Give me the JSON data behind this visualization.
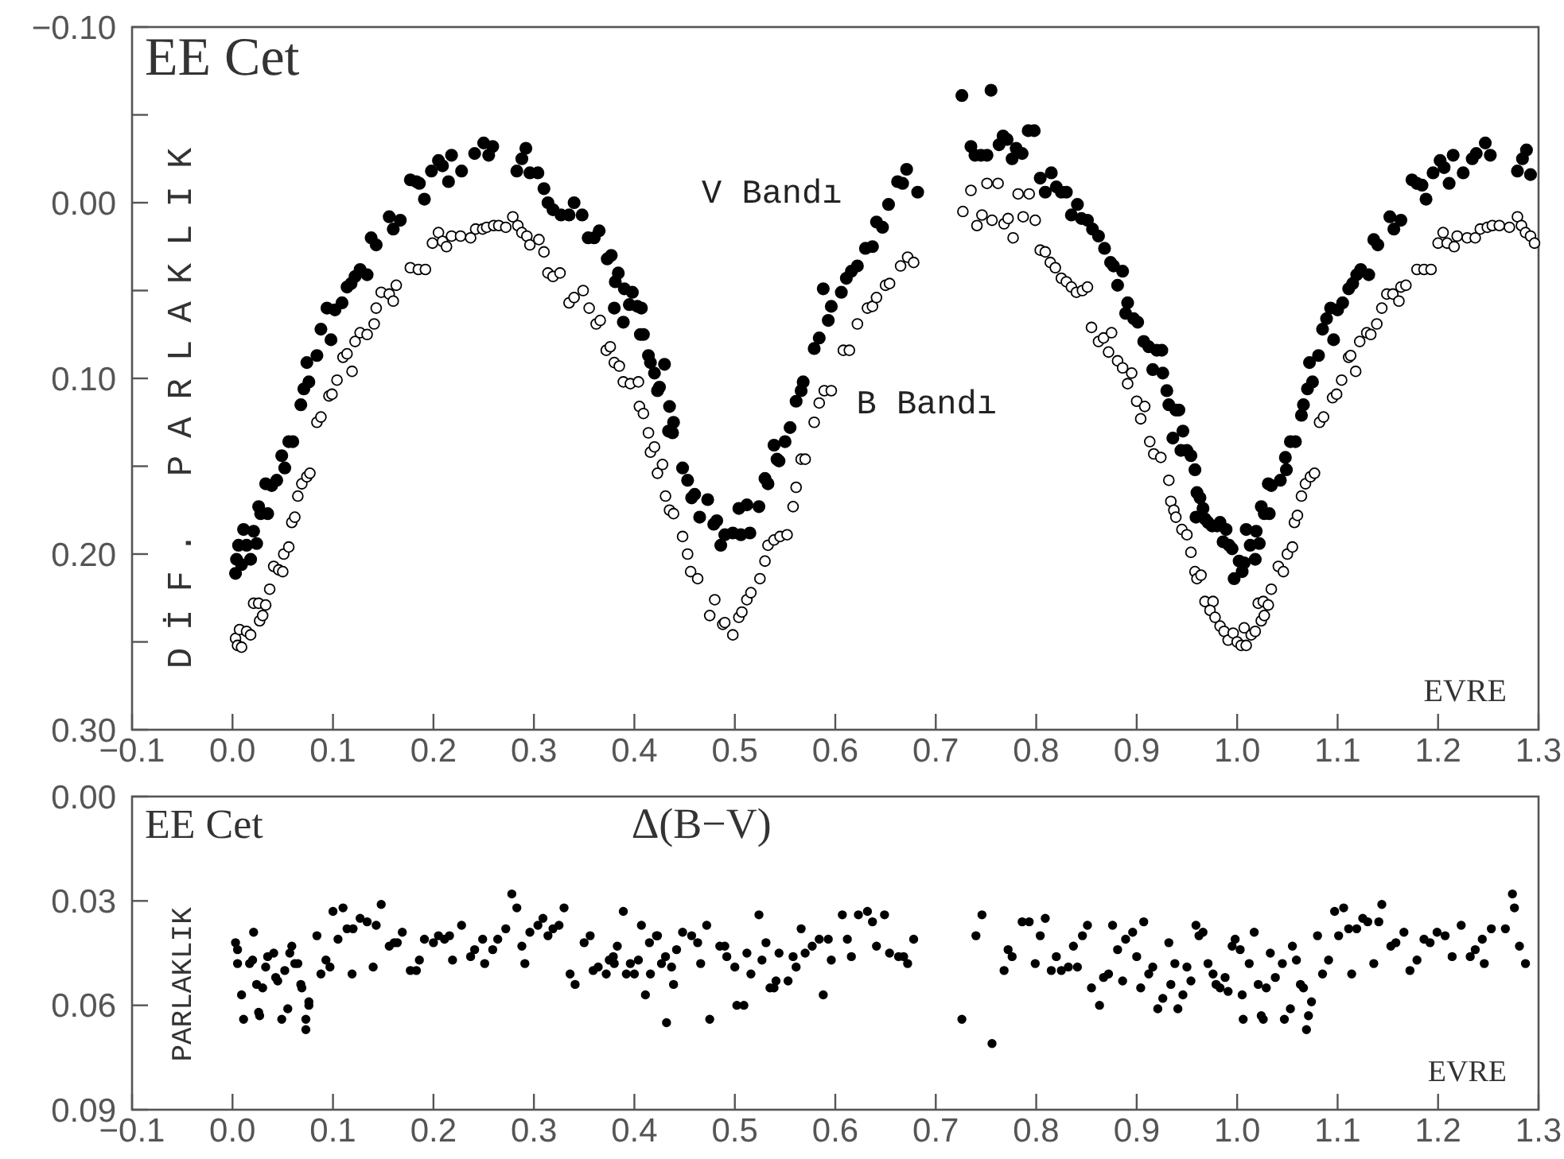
{
  "chart_data": [
    {
      "type": "scatter",
      "annotations": [
        "EE Cet"
      ],
      "xlabel": "EVRE",
      "ylabel": "DİF. PARLAKLIK",
      "marker": "circle",
      "xlim": [
        -0.1,
        1.3
      ],
      "ylim": [
        0.3,
        -0.1
      ],
      "xticks": [
        {
          "value": -0.1,
          "label": "−0.1"
        },
        {
          "value": 0,
          "label": "0.0"
        },
        {
          "value": 0.1,
          "label": "0.1"
        },
        {
          "value": 0.2,
          "label": "0.2"
        },
        {
          "value": 0.3,
          "label": "0.3"
        },
        {
          "value": 0.4,
          "label": "0.4"
        },
        {
          "value": 0.5,
          "label": "0.5"
        },
        {
          "value": 0.6,
          "label": "0.6"
        },
        {
          "value": 0.7,
          "label": "0.7"
        },
        {
          "value": 0.8,
          "label": "0.8"
        },
        {
          "value": 0.9,
          "label": "0.9"
        },
        {
          "value": 1,
          "label": "1.0"
        },
        {
          "value": 1.1,
          "label": "1.1"
        },
        {
          "value": 1.2,
          "label": "1.2"
        },
        {
          "value": 1.3,
          "label": "1.3"
        }
      ],
      "yticks": [
        {
          "value": -0.1,
          "label": "−0.10"
        },
        {
          "value": -0.05,
          "label": null
        },
        {
          "value": 0,
          "label": "0.00"
        },
        {
          "value": 0.05,
          "label": null
        },
        {
          "value": 0.1,
          "label": "0.10"
        },
        {
          "value": 0.15,
          "label": null
        },
        {
          "value": 0.2,
          "label": "0.20"
        },
        {
          "value": 0.25,
          "label": null
        },
        {
          "value": 0.3,
          "label": "0.30"
        }
      ],
      "series": [
        {
          "name": "V Bandı",
          "color": "#000000",
          "x": [
            0.003,
            0.004,
            0.009,
            0.006,
            0.011,
            0.014,
            0.018,
            0.021,
            0.024,
            0.026,
            0.028,
            0.035,
            0.033,
            0.039,
            0.044,
            0.049,
            0.052,
            0.056,
            0.06,
            0.068,
            0.071,
            0.074,
            0.076,
            0.084,
            0.088,
            0.094,
            0.098,
            0.102,
            0.109,
            0.114,
            0.118,
            0.122,
            0.127,
            0.134,
            0.138,
            0.143,
            0.156,
            0.16,
            0.167,
            0.177,
            0.183,
            0.186,
            0.191,
            0.198,
            0.205,
            0.209,
            0.215,
            0.218,
            0.228,
            0.241,
            0.25,
            0.255,
            0.259,
            0.283,
            0.288,
            0.292,
            0.296,
            0.304,
            0.31,
            0.314,
            0.319,
            0.327,
            0.335,
            0.34,
            0.348,
            0.354,
            0.36,
            0.365,
            0.373,
            0.377,
            0.384,
            0.381,
            0.39,
            0.398,
            0.38,
            0.389,
            0.395,
            0.403,
            0.407,
            0.406,
            0.409,
            0.414,
            0.416,
            0.42,
            0.43,
            0.423,
            0.425,
            0.435,
            0.439,
            0.434,
            0.438,
            0.448,
            0.453,
            0.46,
            0.457,
            0.465,
            0.473,
            0.479,
            0.482,
            0.486,
            0.49,
            0.498,
            0.504,
            0.506,
            0.512,
            0.515,
            0.524,
            0.53,
            0.533,
            0.539,
            0.542,
            0.544,
            0.55,
            0.555,
            0.561,
            0.566,
            0.568,
            0.579,
            0.584,
            0.588,
            0.593,
            0.596,
            0.606,
            0.611,
            0.616,
            0.622,
            0.63,
            0.637,
            0.641,
            0.647,
            0.653,
            0.662,
            0.667,
            0.671,
            0.682,
            0.726,
            0.755,
            0.735,
            0.739,
            0.745,
            0.751,
            0.763,
            0.767,
            0.771,
            0.776,
            0.78,
            0.786,
            0.792,
            0.798,
            0.804,
            0.809,
            0.815,
            0.82,
            0.825,
            0.83,
            0.835,
            0.841,
            0.845,
            0.851,
            0.856,
            0.862,
            0.868,
            0.874,
            0.877,
            0.881,
            0.886,
            0.891,
            0.889,
            0.897,
            0.901,
            0.907,
            0.912,
            0.92,
            0.925,
            0.916,
            0.926,
            0.93,
            0.932,
            0.939,
            0.942,
            0.936,
            0.946,
            0.944,
            0.95,
            0.954,
            0.958,
            0.96,
            0.963,
            0.966,
            0.959,
            0.968,
            0.971,
            0.975,
            0.98,
            0.983,
            0.989,
            0.986,
            0.992,
            0.995,
            0.997,
            1.002,
            1.005,
            1.007,
            1.009,
            1.013,
            1.018,
            1.019,
            1.022,
            1.024,
            1.027,
            1.032,
            1.031,
            1.034,
            1.043,
            1.048,
            1.049,
            1.053,
            1.058,
            1.064,
            1.066,
            1.07,
            1.072,
            1.075,
            1.081,
            1.085,
            1.089,
            1.093,
            1.096,
            1.1,
            1.105,
            1.111,
            1.115,
            1.119,
            1.123,
            1.131,
            1.136,
            1.14,
            1.152,
            1.156,
            1.163,
            1.174,
            1.179,
            1.184,
            1.188,
            1.195,
            1.202,
            1.206,
            1.211,
            1.215,
            1.225,
            1.234,
            1.238,
            1.247,
            1.252,
            1.279,
            1.284,
            1.288,
            1.292
          ],
          "values": [
            0.211,
            0.203,
            0.206,
            0.195,
            0.186,
            0.195,
            0.203,
            0.187,
            0.194,
            0.173,
            0.177,
            0.177,
            0.16,
            0.161,
            0.158,
            0.144,
            0.151,
            0.136,
            0.136,
            0.115,
            0.106,
            0.091,
            0.102,
            0.087,
            0.072,
            0.06,
            0.078,
            0.061,
            0.057,
            0.048,
            0.046,
            0.042,
            0.038,
            0.041,
            0.02,
            0.024,
            0.008,
            0.015,
            0.01,
            -0.013,
            -0.012,
            -0.011,
            -0.002,
            -0.018,
            -0.024,
            -0.021,
            -0.012,
            -0.027,
            -0.018,
            -0.028,
            -0.034,
            -0.027,
            -0.032,
            -0.018,
            -0.025,
            -0.031,
            -0.017,
            -0.017,
            -0.008,
            0.0,
            0.004,
            0.007,
            0.007,
            0.0,
            0.007,
            0.02,
            0.02,
            0.016,
            0.032,
            0.03,
            0.04,
            0.045,
            0.049,
            0.051,
            0.06,
            0.068,
            0.058,
            0.059,
            0.06,
            0.075,
            0.075,
            0.087,
            0.091,
            0.097,
            0.092,
            0.107,
            0.105,
            0.116,
            0.125,
            0.13,
            0.131,
            0.151,
            0.158,
            0.166,
            0.168,
            0.179,
            0.169,
            0.183,
            0.181,
            0.195,
            0.189,
            0.188,
            0.174,
            0.189,
            0.172,
            0.188,
            0.173,
            0.157,
            0.16,
            0.138,
            0.146,
            0.147,
            0.136,
            0.128,
            0.113,
            0.107,
            0.102,
            0.083,
            0.077,
            0.049,
            0.067,
            0.059,
            0.051,
            0.043,
            0.039,
            0.036,
            0.026,
            0.025,
            0.011,
            0.014,
            0.001,
            -0.012,
            -0.011,
            -0.019,
            -0.006,
            -0.061,
            -0.064,
            -0.032,
            -0.027,
            -0.027,
            -0.027,
            -0.033,
            -0.038,
            -0.036,
            -0.025,
            -0.031,
            -0.028,
            -0.041,
            -0.041,
            -0.014,
            -0.006,
            -0.017,
            -0.009,
            -0.006,
            -0.006,
            0.007,
            0.001,
            0.009,
            0.01,
            0.015,
            0.019,
            0.026,
            0.034,
            0.036,
            0.047,
            0.039,
            0.057,
            0.063,
            0.066,
            0.068,
            0.079,
            0.082,
            0.084,
            0.084,
            0.095,
            0.097,
            0.107,
            0.115,
            0.118,
            0.118,
            0.134,
            0.13,
            0.141,
            0.141,
            0.144,
            0.152,
            0.165,
            0.168,
            0.174,
            0.179,
            0.18,
            0.182,
            0.184,
            0.184,
            0.182,
            0.186,
            0.193,
            0.195,
            0.197,
            0.214,
            0.204,
            0.21,
            0.205,
            0.186,
            0.195,
            0.203,
            0.187,
            0.194,
            0.173,
            0.177,
            0.177,
            0.16,
            0.161,
            0.158,
            0.145,
            0.152,
            0.136,
            0.136,
            0.121,
            0.115,
            0.106,
            0.091,
            0.102,
            0.087,
            0.072,
            0.066,
            0.06,
            0.078,
            0.061,
            0.057,
            0.049,
            0.046,
            0.041,
            0.038,
            0.041,
            0.021,
            0.024,
            0.008,
            0.015,
            0.01,
            -0.013,
            -0.011,
            -0.01,
            -0.002,
            -0.017,
            -0.024,
            -0.02,
            -0.011,
            -0.027,
            -0.017,
            -0.025,
            -0.028,
            -0.034,
            -0.027,
            -0.018,
            -0.025,
            -0.03,
            -0.016
          ]
        },
        {
          "name": "B Bandı",
          "color": "#000000",
          "x": [
            0.003,
            0.005,
            0.009,
            0.007,
            0.014,
            0.018,
            0.021,
            0.026,
            0.027,
            0.03,
            0.033,
            0.037,
            0.041,
            0.046,
            0.05,
            0.051,
            0.056,
            0.059,
            0.062,
            0.065,
            0.069,
            0.074,
            0.077,
            0.084,
            0.088,
            0.096,
            0.099,
            0.104,
            0.11,
            0.114,
            0.119,
            0.122,
            0.127,
            0.134,
            0.141,
            0.143,
            0.148,
            0.156,
            0.16,
            0.163,
            0.177,
            0.185,
            0.192,
            0.199,
            0.205,
            0.209,
            0.213,
            0.218,
            0.227,
            0.237,
            0.242,
            0.249,
            0.253,
            0.26,
            0.265,
            0.272,
            0.279,
            0.284,
            0.288,
            0.293,
            0.296,
            0.305,
            0.31,
            0.314,
            0.319,
            0.326,
            0.335,
            0.34,
            0.349,
            0.355,
            0.362,
            0.366,
            0.372,
            0.376,
            0.38,
            0.385,
            0.389,
            0.396,
            0.404,
            0.405,
            0.409,
            0.414,
            0.416,
            0.42,
            0.423,
            0.428,
            0.431,
            0.435,
            0.439,
            0.448,
            0.453,
            0.456,
            0.463,
            0.475,
            0.48,
            0.488,
            0.49,
            0.498,
            0.504,
            0.507,
            0.512,
            0.516,
            0.525,
            0.53,
            0.533,
            0.539,
            0.545,
            0.552,
            0.558,
            0.561,
            0.566,
            0.57,
            0.579,
            0.584,
            0.589,
            0.596,
            0.608,
            0.614,
            0.622,
            0.632,
            0.637,
            0.641,
            0.65,
            0.654,
            0.665,
            0.672,
            0.678,
            0.727,
            0.735,
            0.741,
            0.746,
            0.751,
            0.756,
            0.762,
            0.768,
            0.772,
            0.777,
            0.782,
            0.787,
            0.793,
            0.799,
            0.804,
            0.809,
            0.814,
            0.819,
            0.825,
            0.83,
            0.835,
            0.84,
            0.846,
            0.851,
            0.855,
            0.862,
            0.867,
            0.875,
            0.872,
            0.881,
            0.886,
            0.891,
            0.895,
            0.9,
            0.904,
            0.908,
            0.913,
            0.917,
            0.924,
            0.932,
            0.934,
            0.937,
            0.939,
            0.945,
            0.95,
            0.954,
            0.958,
            0.96,
            0.964,
            0.968,
            0.976,
            0.973,
            0.978,
            0.983,
            0.987,
            0.991,
            0.996,
            1.0,
            1.004,
            1.009,
            1.007,
            1.014,
            1.018,
            1.021,
            1.026,
            1.024,
            1.027,
            1.031,
            1.034,
            1.041,
            1.046,
            1.05,
            1.055,
            1.057,
            1.06,
            1.064,
            1.068,
            1.073,
            1.077,
            1.082,
            1.086,
            1.095,
            1.099,
            1.104,
            1.111,
            1.113,
            1.118,
            1.122,
            1.129,
            1.133,
            1.139,
            1.144,
            1.149,
            1.155,
            1.161,
            1.163,
            1.168,
            1.179,
            1.186,
            1.193,
            1.2,
            1.205,
            1.209,
            1.216,
            1.219,
            1.229,
            1.237,
            1.242,
            1.249,
            1.254,
            1.261,
            1.271,
            1.279,
            1.283,
            1.287,
            1.292,
            1.296
          ],
          "values": [
            0.248,
            0.252,
            0.253,
            0.243,
            0.244,
            0.246,
            0.228,
            0.228,
            0.238,
            0.235,
            0.229,
            0.22,
            0.207,
            0.209,
            0.21,
            0.2,
            0.196,
            0.182,
            0.179,
            0.167,
            0.16,
            0.156,
            0.154,
            0.125,
            0.122,
            0.11,
            0.109,
            0.101,
            0.088,
            0.086,
            0.096,
            0.079,
            0.074,
            0.075,
            0.069,
            0.06,
            0.051,
            0.052,
            0.056,
            0.047,
            0.037,
            0.038,
            0.038,
            0.023,
            0.017,
            0.022,
            0.025,
            0.019,
            0.019,
            0.02,
            0.015,
            0.015,
            0.014,
            0.013,
            0.013,
            0.014,
            0.008,
            0.013,
            0.017,
            0.019,
            0.024,
            0.021,
            0.028,
            0.04,
            0.042,
            0.04,
            0.057,
            0.054,
            0.05,
            0.06,
            0.069,
            0.067,
            0.084,
            0.082,
            0.091,
            0.093,
            0.102,
            0.103,
            0.102,
            0.116,
            0.12,
            0.131,
            0.142,
            0.139,
            0.154,
            0.149,
            0.167,
            0.175,
            0.177,
            0.19,
            0.2,
            0.21,
            0.214,
            0.235,
            0.226,
            0.24,
            0.239,
            0.246,
            0.236,
            0.233,
            0.226,
            0.222,
            0.214,
            0.204,
            0.195,
            0.192,
            0.19,
            0.189,
            0.173,
            0.162,
            0.146,
            0.146,
            0.125,
            0.114,
            0.107,
            0.107,
            0.084,
            0.084,
            0.069,
            0.06,
            0.059,
            0.054,
            0.047,
            0.046,
            0.036,
            0.031,
            0.034,
            0.005,
            -0.007,
            0.013,
            0.007,
            -0.011,
            0.01,
            -0.011,
            0.012,
            0.009,
            0.02,
            -0.005,
            0.008,
            -0.005,
            0.01,
            0.027,
            0.028,
            0.034,
            0.037,
            0.043,
            0.045,
            0.048,
            0.051,
            0.05,
            0.048,
            0.071,
            0.079,
            0.077,
            0.074,
            0.085,
            0.09,
            0.094,
            0.103,
            0.097,
            0.113,
            0.123,
            0.116,
            0.136,
            0.143,
            0.145,
            0.158,
            0.17,
            0.175,
            0.179,
            0.186,
            0.189,
            0.199,
            0.21,
            0.214,
            0.212,
            0.227,
            0.227,
            0.232,
            0.236,
            0.241,
            0.244,
            0.249,
            0.245,
            0.25,
            0.252,
            0.252,
            0.242,
            0.246,
            0.244,
            0.228,
            0.227,
            0.238,
            0.235,
            0.229,
            0.22,
            0.207,
            0.21,
            0.2,
            0.196,
            0.182,
            0.178,
            0.167,
            0.16,
            0.156,
            0.154,
            0.125,
            0.122,
            0.111,
            0.109,
            0.101,
            0.088,
            0.087,
            0.096,
            0.079,
            0.074,
            0.075,
            0.069,
            0.06,
            0.052,
            0.052,
            0.056,
            0.048,
            0.047,
            0.038,
            0.038,
            0.038,
            0.023,
            0.017,
            0.023,
            0.025,
            0.019,
            0.02,
            0.02,
            0.015,
            0.014,
            0.013,
            0.013,
            0.014,
            0.008,
            0.013,
            0.017,
            0.019,
            0.023
          ]
        }
      ]
    },
    {
      "type": "scatter",
      "title": "Δ(B−V)",
      "annotations": [
        "EE Cet"
      ],
      "xlabel": "EVRE",
      "ylabel": "PARLAKLIK",
      "marker": "circle",
      "xlim": [
        -0.1,
        1.3
      ],
      "ylim": [
        0.09,
        0.0
      ],
      "xticks": [
        {
          "value": -0.1,
          "label": "−0.1"
        },
        {
          "value": 0,
          "label": "0.0"
        },
        {
          "value": 0.1,
          "label": "0.1"
        },
        {
          "value": 0.2,
          "label": "0.2"
        },
        {
          "value": 0.3,
          "label": "0.3"
        },
        {
          "value": 0.4,
          "label": "0.4"
        },
        {
          "value": 0.5,
          "label": "0.5"
        },
        {
          "value": 0.6,
          "label": "0.6"
        },
        {
          "value": 0.7,
          "label": "0.7"
        },
        {
          "value": 0.8,
          "label": "0.8"
        },
        {
          "value": 0.9,
          "label": "0.9"
        },
        {
          "value": 1,
          "label": "1.0"
        },
        {
          "value": 1.1,
          "label": "1.1"
        },
        {
          "value": 1.2,
          "label": "1.2"
        },
        {
          "value": 1.3,
          "label": "1.3"
        }
      ],
      "yticks": [
        {
          "value": 0,
          "label": "0.00"
        },
        {
          "value": 0.03,
          "label": "0.03"
        },
        {
          "value": 0.06,
          "label": "0.06"
        },
        {
          "value": 0.09,
          "label": "0.09"
        }
      ],
      "series": [
        {
          "color": "#000000",
          "x": [
            0.003,
            0.005,
            0.005,
            0.009,
            0.011,
            0.017,
            0.02,
            0.021,
            0.024,
            0.026,
            0.027,
            0.03,
            0.033,
            0.035,
            0.041,
            0.043,
            0.045,
            0.049,
            0.052,
            0.055,
            0.057,
            0.059,
            0.062,
            0.065,
            0.068,
            0.069,
            0.073,
            0.076,
            0.076,
            0.073,
            0.084,
            0.088,
            0.093,
            0.097,
            0.1,
            0.105,
            0.11,
            0.114,
            0.119,
            0.12,
            0.127,
            0.134,
            0.14,
            0.143,
            0.148,
            0.156,
            0.161,
            0.164,
            0.169,
            0.177,
            0.183,
            0.186,
            0.191,
            0.2,
            0.205,
            0.211,
            0.216,
            0.219,
            0.228,
            0.237,
            0.241,
            0.249,
            0.251,
            0.259,
            0.264,
            0.272,
            0.278,
            0.283,
            0.288,
            0.291,
            0.296,
            0.304,
            0.309,
            0.314,
            0.319,
            0.325,
            0.33,
            0.336,
            0.341,
            0.35,
            0.356,
            0.359,
            0.364,
            0.372,
            0.375,
            0.379,
            0.38,
            0.383,
            0.389,
            0.392,
            0.396,
            0.4,
            0.404,
            0.407,
            0.411,
            0.415,
            0.416,
            0.422,
            0.423,
            0.427,
            0.431,
            0.432,
            0.437,
            0.439,
            0.442,
            0.448,
            0.457,
            0.463,
            0.466,
            0.472,
            0.475,
            0.485,
            0.49,
            0.492,
            0.5,
            0.502,
            0.509,
            0.512,
            0.516,
            0.524,
            0.531,
            0.527,
            0.539,
            0.535,
            0.544,
            0.541,
            0.553,
            0.558,
            0.561,
            0.566,
            0.57,
            0.577,
            0.584,
            0.588,
            0.593,
            0.596,
            0.607,
            0.612,
            0.616,
            0.623,
            0.632,
            0.637,
            0.641,
            0.649,
            0.654,
            0.663,
            0.668,
            0.672,
            0.678,
            0.726,
            0.74,
            0.746,
            0.756,
            0.768,
            0.772,
            0.776,
            0.786,
            0.793,
            0.799,
            0.804,
            0.809,
            0.815,
            0.82,
            0.825,
            0.832,
            0.837,
            0.841,
            0.846,
            0.851,
            0.855,
            0.863,
            0.867,
            0.872,
            0.876,
            0.881,
            0.886,
            0.889,
            0.896,
            0.9,
            0.904,
            0.907,
            0.912,
            0.916,
            0.921,
            0.926,
            0.932,
            0.934,
            0.941,
            0.938,
            0.946,
            0.95,
            0.954,
            0.959,
            0.962,
            0.966,
            0.971,
            0.976,
            0.979,
            0.983,
            0.988,
            0.991,
            0.995,
            0.998,
            1.003,
            1.005,
            1.006,
            1.012,
            1.017,
            1.021,
            1.024,
            1.026,
            1.029,
            1.033,
            1.038,
            1.045,
            1.047,
            1.053,
            1.055,
            1.059,
            1.063,
            1.066,
            1.069,
            1.071,
            1.074,
            1.08,
            1.085,
            1.091,
            1.097,
            1.101,
            1.106,
            1.111,
            1.114,
            1.119,
            1.125,
            1.13,
            1.136,
            1.141,
            1.144,
            1.153,
            1.158,
            1.166,
            1.172,
            1.179,
            1.186,
            1.192,
            1.199,
            1.207,
            1.214,
            1.223,
            1.232,
            1.237,
            1.244,
            1.246,
            1.253,
            1.267,
            1.274,
            1.276,
            1.281,
            1.287
          ],
          "values": [
            0.042,
            0.044,
            0.048,
            0.057,
            0.064,
            0.048,
            0.047,
            0.039,
            0.054,
            0.062,
            0.063,
            0.055,
            0.049,
            0.046,
            0.045,
            0.052,
            0.053,
            0.064,
            0.05,
            0.061,
            0.045,
            0.043,
            0.048,
            0.048,
            0.054,
            0.055,
            0.064,
            0.059,
            0.06,
            0.067,
            0.04,
            0.051,
            0.047,
            0.049,
            0.033,
            0.041,
            0.032,
            0.038,
            0.051,
            0.038,
            0.035,
            0.036,
            0.049,
            0.037,
            0.031,
            0.043,
            0.042,
            0.042,
            0.039,
            0.05,
            0.05,
            0.047,
            0.041,
            0.042,
            0.04,
            0.041,
            0.04,
            0.047,
            0.037,
            0.046,
            0.044,
            0.041,
            0.048,
            0.044,
            0.041,
            0.038,
            0.028,
            0.032,
            0.043,
            0.048,
            0.039,
            0.037,
            0.035,
            0.04,
            0.038,
            0.037,
            0.032,
            0.051,
            0.054,
            0.042,
            0.04,
            0.05,
            0.049,
            0.051,
            0.047,
            0.046,
            0.048,
            0.043,
            0.033,
            0.051,
            0.048,
            0.051,
            0.047,
            0.037,
            0.057,
            0.042,
            0.051,
            0.04,
            0.04,
            0.048,
            0.046,
            0.065,
            0.049,
            0.054,
            0.044,
            0.039,
            0.04,
            0.042,
            0.048,
            0.037,
            0.064,
            0.043,
            0.043,
            0.046,
            0.049,
            0.06,
            0.06,
            0.045,
            0.051,
            0.034,
            0.042,
            0.047,
            0.055,
            0.055,
            0.045,
            0.053,
            0.053,
            0.046,
            0.049,
            0.038,
            0.045,
            0.043,
            0.041,
            0.057,
            0.041,
            0.047,
            0.034,
            0.041,
            0.046,
            0.034,
            0.033,
            0.036,
            0.043,
            0.034,
            0.045,
            0.046,
            0.046,
            0.048,
            0.041,
            0.064,
            0.04,
            0.034,
            0.071,
            0.05,
            0.044,
            0.046,
            0.036,
            0.036,
            0.048,
            0.04,
            0.035,
            0.05,
            0.046,
            0.05,
            0.049,
            0.043,
            0.049,
            0.04,
            0.037,
            0.055,
            0.06,
            0.052,
            0.051,
            0.037,
            0.044,
            0.053,
            0.041,
            0.039,
            0.046,
            0.055,
            0.036,
            0.051,
            0.049,
            0.061,
            0.058,
            0.042,
            0.054,
            0.061,
            0.048,
            0.057,
            0.049,
            0.053,
            0.037,
            0.04,
            0.039,
            0.048,
            0.051,
            0.054,
            0.055,
            0.052,
            0.056,
            0.043,
            0.041,
            0.044,
            0.057,
            0.064,
            0.048,
            0.039,
            0.054,
            0.063,
            0.064,
            0.055,
            0.045,
            0.052,
            0.048,
            0.064,
            0.061,
            0.043,
            0.047,
            0.054,
            0.055,
            0.067,
            0.063,
            0.059,
            0.04,
            0.051,
            0.047,
            0.033,
            0.04,
            0.032,
            0.038,
            0.051,
            0.038,
            0.035,
            0.036,
            0.048,
            0.036,
            0.031,
            0.043,
            0.042,
            0.039,
            0.05,
            0.047,
            0.041,
            0.042,
            0.039,
            0.04,
            0.046,
            0.037,
            0.046,
            0.044,
            0.041,
            0.048,
            0.038,
            0.038,
            0.028,
            0.032,
            0.043,
            0.048
          ]
        }
      ]
    }
  ]
}
